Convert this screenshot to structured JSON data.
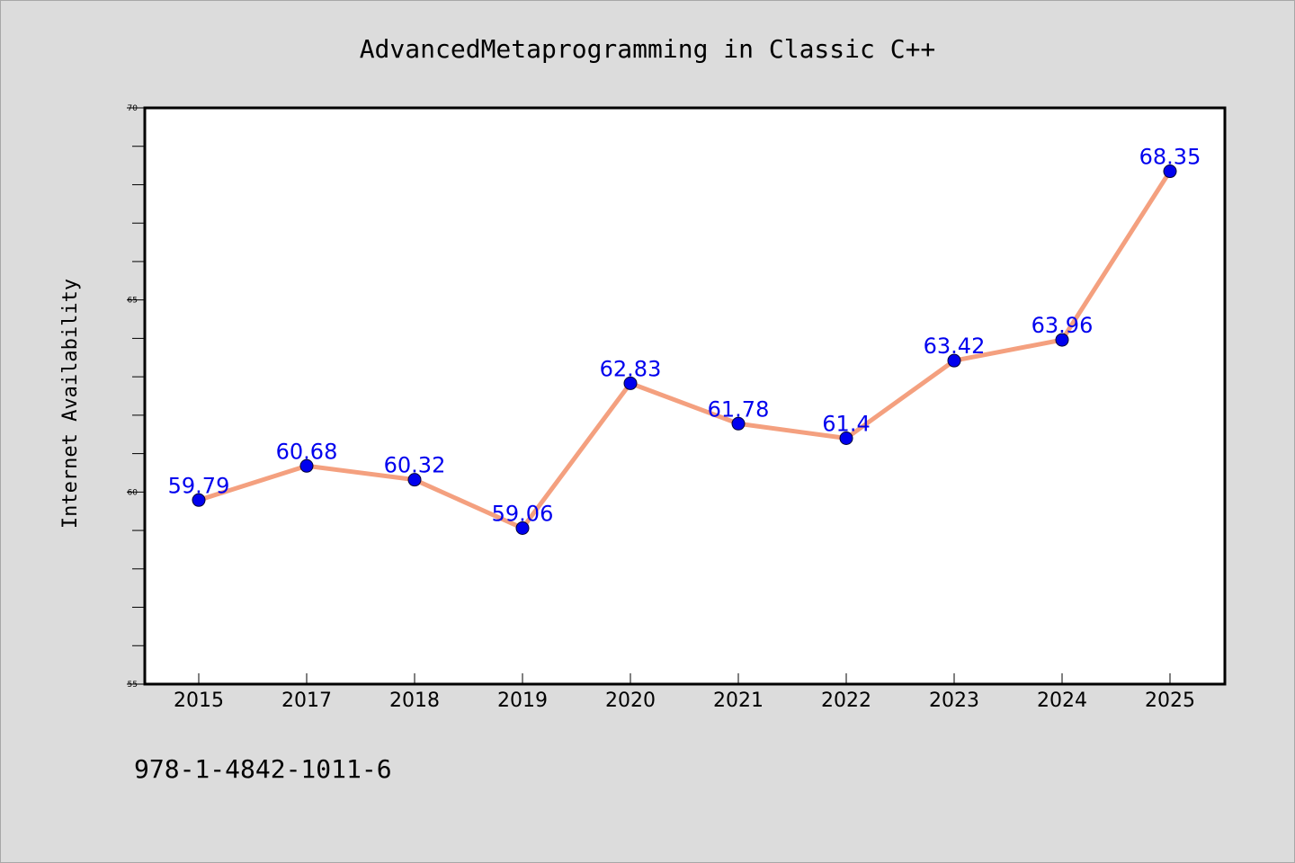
{
  "chart_data": {
    "type": "line",
    "title": "AdvancedMetaprogramming in Classic C++",
    "xlabel": "",
    "ylabel": "Internet Availability",
    "categories": [
      "2015",
      "2017",
      "2018",
      "2019",
      "2020",
      "2021",
      "2022",
      "2023",
      "2024",
      "2025"
    ],
    "series": [
      {
        "values": [
          59.79,
          60.68,
          60.32,
          59.06,
          62.83,
          61.78,
          61.4,
          63.42,
          63.96,
          68.35
        ],
        "data_labels": [
          "59.79",
          "60.68",
          "60.32",
          "59.06",
          "62.83",
          "61.78",
          "61.4",
          "63.42",
          "63.96",
          "68.35"
        ]
      }
    ],
    "ylim": [
      55,
      70
    ],
    "yticks": [
      55,
      60,
      65,
      70
    ],
    "ytick_labels": [
      "55",
      "60",
      "65",
      "70"
    ],
    "grid": false,
    "colors": {
      "line": "#f4a07f",
      "marker": "#0000ee",
      "label": "#0000ee",
      "plot_background": "#ffffff",
      "page_background": "#dcdcdc"
    }
  },
  "footer": {
    "isbn": "978-1-4842-1011-6"
  }
}
